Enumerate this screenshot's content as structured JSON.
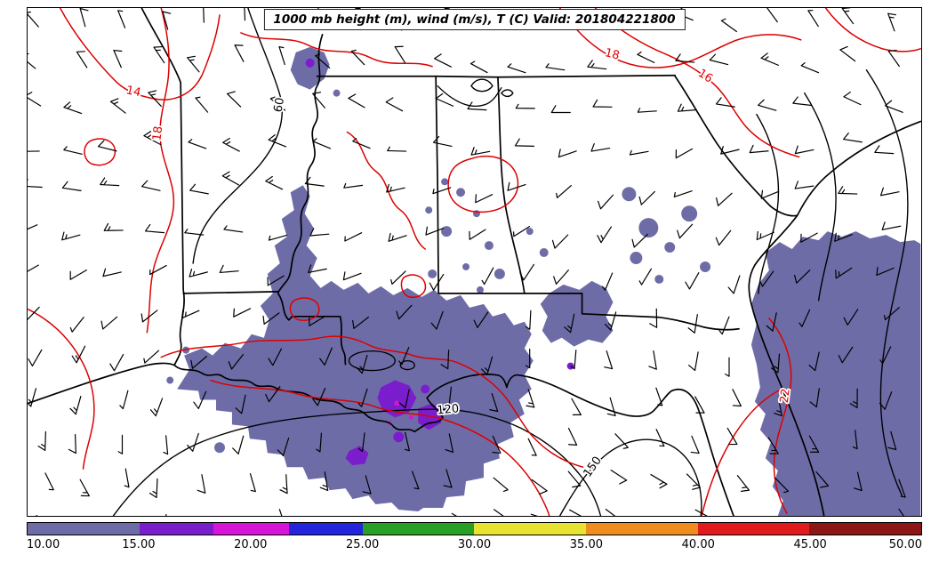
{
  "title": "1000 mb height (m), wind (m/s), T (C) Valid: 201804221800",
  "colorbar": {
    "ticks": [
      "10.00",
      "15.00",
      "20.00",
      "25.00",
      "30.00",
      "35.00",
      "40.00",
      "45.00",
      "50.00"
    ],
    "segments": [
      {
        "from": 10,
        "to": 15,
        "color": "#6e6ca6"
      },
      {
        "from": 15,
        "to": 18.3,
        "color": "#7a1dcc"
      },
      {
        "from": 18.3,
        "to": 21.7,
        "color": "#d615d6"
      },
      {
        "from": 21.7,
        "to": 25,
        "color": "#2424dd"
      },
      {
        "from": 25,
        "to": 30,
        "color": "#28a028"
      },
      {
        "from": 30,
        "to": 35,
        "color": "#e8e332"
      },
      {
        "from": 35,
        "to": 40,
        "color": "#ef8c20"
      },
      {
        "from": 40,
        "to": 45,
        "color": "#e11b1b"
      },
      {
        "from": 45,
        "to": 50,
        "color": "#8c1616"
      }
    ]
  },
  "contour_labels": {
    "height": [
      "60",
      "120",
      "150"
    ],
    "temperature": [
      "14",
      "18",
      "18",
      "16",
      "22"
    ]
  },
  "colors": {
    "height_contour": "#000000",
    "state_border": "#000000",
    "temperature_contour": "#dd0000",
    "background": "#ffffff"
  },
  "chart_data": {
    "type": "heatmap",
    "title": "1000 mb height (m), wind (m/s), T (C) Valid: 201804221800",
    "colorbar_ticks": [
      10,
      15,
      20,
      25,
      30,
      35,
      40,
      45,
      50
    ],
    "height_contour_labels_m": [
      60,
      120,
      150
    ],
    "temperature_contour_labels_c": [
      14,
      18,
      18,
      16,
      22
    ],
    "legend_position": "bottom",
    "grid": false
  }
}
